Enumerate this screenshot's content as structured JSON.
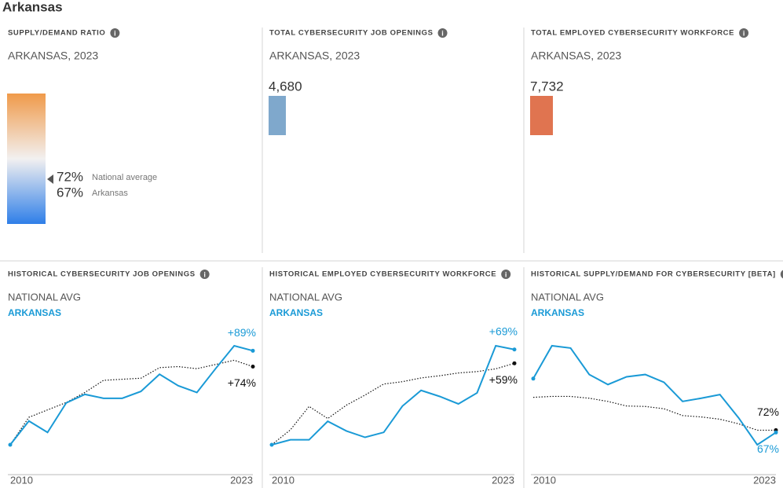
{
  "title": "Arkansas",
  "panels": [
    {
      "title": "SUPPLY/DEMAND RATIO",
      "subtitle": "ARKANSAS, 2023",
      "markers": [
        {
          "value": 72,
          "label": "72%",
          "name": "National average"
        },
        {
          "value": 67,
          "label": "67%",
          "name": "Arkansas"
        }
      ]
    },
    {
      "title": "TOTAL CYBERSECURITY JOB OPENINGS",
      "subtitle": "ARKANSAS, 2023",
      "value": 4680,
      "label": "4,680",
      "color": "#7fa8cc"
    },
    {
      "title": "TOTAL EMPLOYED CYBERSECURITY WORKFORCE",
      "subtitle": "ARKANSAS, 2023",
      "value": 7732,
      "label": "7,732",
      "color": "#e07450"
    }
  ],
  "chart_data": [
    {
      "type": "line",
      "title": "HISTORICAL CYBERSECURITY JOB OPENINGS",
      "x": [
        2010,
        2011,
        2012,
        2013,
        2014,
        2015,
        2016,
        2017,
        2018,
        2019,
        2020,
        2021,
        2022,
        2023
      ],
      "xticks": [
        2010,
        2023
      ],
      "series": [
        {
          "name": "NATIONAL AVG",
          "color": "#111111",
          "line_style": "dotted",
          "values": [
            0,
            26,
            33,
            40,
            49.5,
            61,
            62,
            63,
            73,
            74,
            72,
            76,
            80,
            74
          ],
          "value_labels": [
            null,
            null,
            null,
            null,
            null,
            null,
            null,
            null,
            null,
            null,
            null,
            null,
            null,
            "+74%"
          ]
        },
        {
          "name": "ARKANSAS",
          "color": "#1a9ad6",
          "line_style": "solid",
          "values": [
            0,
            22.5,
            11.7,
            39.6,
            47.7,
            44,
            44,
            50.5,
            66.7,
            55.9,
            49.5,
            72,
            93.7,
            89
          ],
          "value_labels": [
            null,
            null,
            null,
            null,
            null,
            null,
            null,
            null,
            null,
            null,
            null,
            null,
            null,
            "+89%"
          ]
        }
      ]
    },
    {
      "type": "line",
      "title": "HISTORICAL EMPLOYED CYBERSECURITY WORKFORCE",
      "x": [
        2010,
        2011,
        2012,
        2013,
        2014,
        2015,
        2016,
        2017,
        2018,
        2019,
        2020,
        2021,
        2022,
        2023
      ],
      "xticks": [
        2010,
        2023
      ],
      "series": [
        {
          "name": "NATIONAL AVG",
          "color": "#111111",
          "line_style": "dotted",
          "values": [
            0,
            10.8,
            27.8,
            19,
            28.7,
            36,
            44,
            45.7,
            48.4,
            50,
            52,
            53,
            55,
            59
          ],
          "value_labels": [
            null,
            null,
            null,
            null,
            null,
            null,
            null,
            null,
            null,
            null,
            null,
            null,
            null,
            "+59%"
          ]
        },
        {
          "name": "ARKANSAS",
          "color": "#1a9ad6",
          "line_style": "solid",
          "values": [
            0,
            3.6,
            3.6,
            17,
            10,
            5.4,
            9,
            28,
            39.4,
            35,
            29.6,
            37.6,
            71.7,
            69
          ],
          "value_labels": [
            null,
            null,
            null,
            null,
            null,
            null,
            null,
            null,
            null,
            null,
            null,
            null,
            null,
            "+69%"
          ]
        }
      ]
    },
    {
      "type": "line",
      "title": "HISTORICAL SUPPLY/DEMAND FOR CYBERSECURITY [BETA]",
      "x": [
        2010,
        2011,
        2012,
        2013,
        2014,
        2015,
        2016,
        2017,
        2018,
        2019,
        2020,
        2021,
        2022,
        2023
      ],
      "xticks": [
        2010,
        2023
      ],
      "series": [
        {
          "name": "NATIONAL AVG",
          "color": "#111111",
          "line_style": "dotted",
          "values": [
            144,
            146,
            146,
            142,
            135,
            125,
            124,
            119,
            104,
            101,
            96,
            86,
            72,
            72
          ],
          "value_labels": [
            null,
            null,
            null,
            null,
            null,
            null,
            null,
            null,
            null,
            null,
            null,
            null,
            null,
            "72%"
          ]
        },
        {
          "name": "ARKANSAS",
          "color": "#1a9ad6",
          "line_style": "solid",
          "values": [
            185,
            257,
            252,
            194,
            172,
            189,
            194,
            177,
            135,
            142,
            150,
            99,
            40,
            67
          ],
          "value_labels": [
            null,
            null,
            null,
            null,
            null,
            null,
            null,
            null,
            null,
            null,
            null,
            null,
            null,
            "67%"
          ]
        }
      ]
    }
  ]
}
